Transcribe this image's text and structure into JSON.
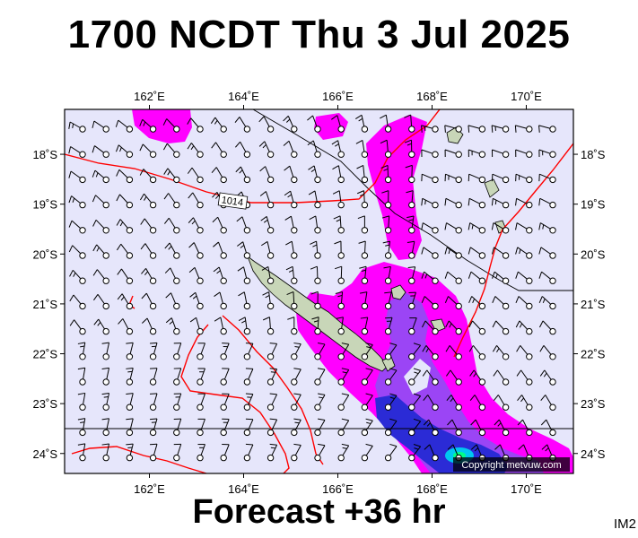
{
  "title": "1700 NCDT Thu 3 Jul 2025",
  "footer": "Forecast +36 hr",
  "image_code": "IM2",
  "copyright": "Copyright metvuw.com",
  "isobar_label": "1014",
  "map": {
    "lon_range": [
      160.2,
      171.0
    ],
    "lat_range": [
      -24.4,
      -17.1
    ],
    "lon_ticks": [
      {
        "value": 162,
        "label": "162˚E"
      },
      {
        "value": 164,
        "label": "164˚E"
      },
      {
        "value": 166,
        "label": "166˚E"
      },
      {
        "value": 168,
        "label": "168˚E"
      },
      {
        "value": 170,
        "label": "170˚E"
      }
    ],
    "lat_ticks": [
      {
        "value": -18,
        "label": "18˚S"
      },
      {
        "value": -19,
        "label": "19˚S"
      },
      {
        "value": -20,
        "label": "20˚S"
      },
      {
        "value": -21,
        "label": "21˚S"
      },
      {
        "value": -22,
        "label": "22˚S"
      },
      {
        "value": -23,
        "label": "23˚S"
      },
      {
        "value": -24,
        "label": "24˚S"
      }
    ],
    "colors": {
      "ocean": "#e6e6fb",
      "rain_light": "#ff00ff",
      "rain_medium": "#9b45f5",
      "rain_heavy": "#2b2bd6",
      "rain_extreme": "#00c8f0",
      "land": "#c8d6b8",
      "isobar": "#ff0000",
      "boundary": "#000000",
      "wind_barb": "#000000"
    }
  }
}
